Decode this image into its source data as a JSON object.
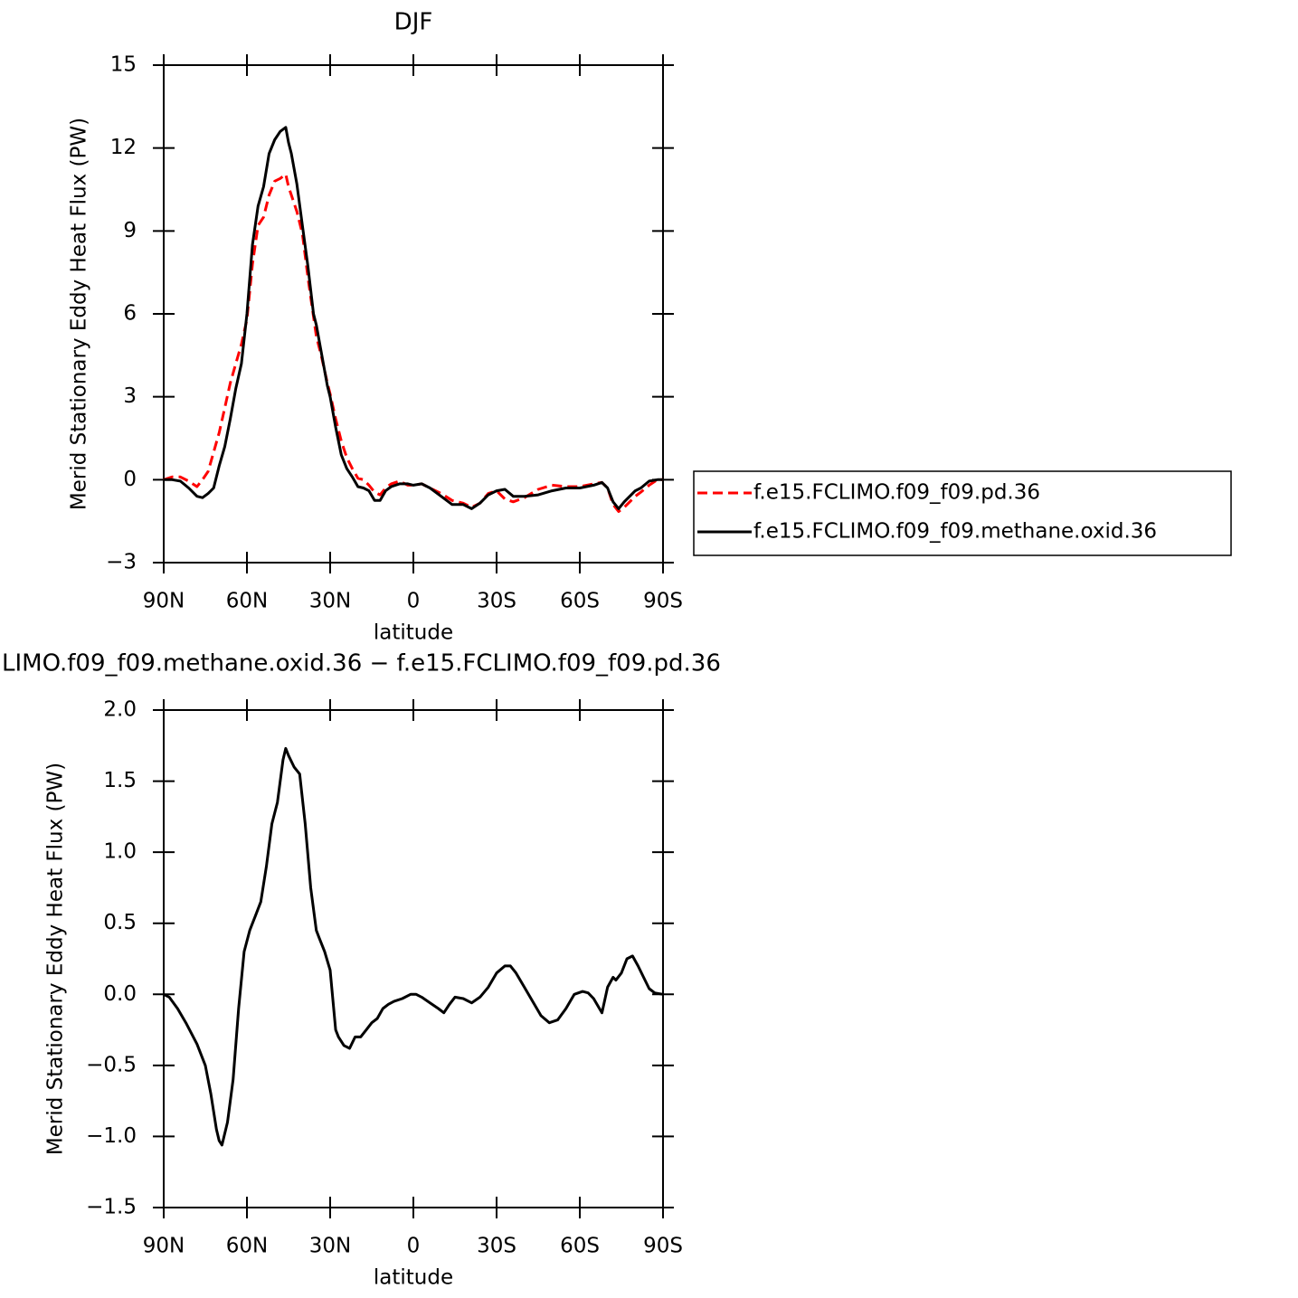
{
  "chart_data": [
    {
      "type": "line",
      "title": "DJF",
      "xlabel": "latitude",
      "ylabel": "Merid Stationary Eddy Heat Flux (PW)",
      "x": [
        90,
        87,
        84,
        81,
        78,
        76,
        74,
        72,
        70,
        68,
        66,
        64,
        62,
        60,
        58,
        56,
        54,
        52,
        50,
        48,
        46,
        45,
        44,
        42,
        40,
        38,
        36,
        35,
        33,
        31,
        30,
        28,
        26,
        24,
        22,
        20,
        18,
        16,
        14,
        12,
        10,
        8,
        5,
        2,
        0,
        -3,
        -6,
        -10,
        -14,
        -18,
        -21,
        -24,
        -27,
        -30,
        -33,
        -36,
        -40,
        -45,
        -50,
        -55,
        -60,
        -65,
        -68,
        -70,
        -72,
        -74,
        -76,
        -78,
        -80,
        -82,
        -85,
        -88,
        -90
      ],
      "series": [
        {
          "name": "f.e15.FCLIMO.f09_f09.pd.36",
          "color": "#ff0000",
          "linestyle": "dashed",
          "values": [
            0,
            0.1,
            0.1,
            -0.05,
            -0.25,
            0,
            0.3,
            1.0,
            1.7,
            2.6,
            3.5,
            4.2,
            4.9,
            5.8,
            7.8,
            9.2,
            9.5,
            10.3,
            10.8,
            10.9,
            11.05,
            10.6,
            10.3,
            9.7,
            8.9,
            7.3,
            5.9,
            5.2,
            4.4,
            3.5,
            3.1,
            2.2,
            1.4,
            0.8,
            0.4,
            0.05,
            0,
            -0.2,
            -0.45,
            -0.55,
            -0.3,
            -0.15,
            -0.05,
            -0.2,
            -0.2,
            -0.15,
            -0.3,
            -0.5,
            -0.75,
            -0.85,
            -1.0,
            -0.85,
            -0.5,
            -0.4,
            -0.7,
            -0.8,
            -0.65,
            -0.35,
            -0.2,
            -0.25,
            -0.25,
            -0.15,
            -0.1,
            -0.3,
            -0.9,
            -1.15,
            -1.0,
            -0.8,
            -0.6,
            -0.45,
            -0.2,
            0,
            0
          ]
        },
        {
          "name": "f.e15.FCLIMO.f09_f09.methane.oxid.36",
          "color": "#000000",
          "linestyle": "solid",
          "values": [
            0,
            0,
            -0.05,
            -0.3,
            -0.6,
            -0.65,
            -0.5,
            -0.3,
            0.5,
            1.2,
            2.2,
            3.3,
            4.2,
            6.0,
            8.5,
            9.9,
            10.6,
            11.8,
            12.3,
            12.6,
            12.75,
            12.2,
            11.8,
            10.7,
            9.2,
            7.7,
            6.0,
            5.6,
            4.5,
            3.4,
            3.0,
            1.9,
            0.9,
            0.4,
            0.1,
            -0.25,
            -0.3,
            -0.4,
            -0.75,
            -0.75,
            -0.4,
            -0.25,
            -0.15,
            -0.15,
            -0.2,
            -0.15,
            -0.3,
            -0.6,
            -0.9,
            -0.9,
            -1.05,
            -0.85,
            -0.55,
            -0.4,
            -0.35,
            -0.6,
            -0.6,
            -0.55,
            -0.4,
            -0.3,
            -0.3,
            -0.2,
            -0.1,
            -0.3,
            -0.8,
            -1.05,
            -0.8,
            -0.6,
            -0.4,
            -0.3,
            -0.05,
            0,
            0
          ]
        }
      ],
      "xlim": [
        90,
        -90
      ],
      "xticks": [
        {
          "value": 90,
          "label": "90N"
        },
        {
          "value": 60,
          "label": "60N"
        },
        {
          "value": 30,
          "label": "30N"
        },
        0,
        {
          "value": -30,
          "label": "30S"
        },
        {
          "value": -60,
          "label": "60S"
        },
        {
          "value": -90,
          "label": "90S"
        }
      ],
      "ylim": [
        -3,
        15
      ],
      "yticks": [
        {
          "value": -3,
          "label": "−3"
        },
        0,
        3,
        6,
        9,
        12,
        15
      ],
      "legend": "right"
    },
    {
      "type": "line",
      "title": "LIMO.f09_f09.methane.oxid.36 − f.e15.FCLIMO.f09_f09.pd.36",
      "xlabel": "latitude",
      "ylabel": "Merid Stationary Eddy Heat Flux (PW)",
      "x": [
        90,
        88,
        85,
        82,
        78,
        75,
        73,
        71,
        70,
        69,
        67,
        65,
        63,
        61,
        59,
        57,
        55,
        53,
        51,
        49,
        47,
        46,
        45,
        43,
        41,
        39,
        37,
        35,
        34,
        32,
        30,
        28,
        27,
        25,
        23,
        21,
        19,
        17,
        15,
        13,
        11,
        9,
        7,
        4,
        1,
        -1,
        -3,
        -6,
        -9,
        -11,
        -13,
        -15,
        -18,
        -21,
        -24,
        -27,
        -30,
        -33,
        -35,
        -37,
        -40,
        -43,
        -46,
        -49,
        -52,
        -55,
        -58,
        -61,
        -63,
        -65,
        -68,
        -70,
        -72,
        -73,
        -75,
        -77,
        -79,
        -81,
        -83,
        -85,
        -87,
        -90
      ],
      "values": [
        0,
        -0.02,
        -0.1,
        -0.2,
        -0.35,
        -0.5,
        -0.7,
        -0.95,
        -1.03,
        -1.06,
        -0.9,
        -0.6,
        -0.1,
        0.3,
        0.45,
        0.55,
        0.65,
        0.9,
        1.2,
        1.35,
        1.65,
        1.73,
        1.68,
        1.6,
        1.55,
        1.2,
        0.75,
        0.45,
        0.4,
        0.3,
        0.17,
        -0.25,
        -0.3,
        -0.36,
        -0.38,
        -0.3,
        -0.3,
        -0.25,
        -0.2,
        -0.17,
        -0.1,
        -0.07,
        -0.05,
        -0.03,
        0,
        0,
        -0.02,
        -0.06,
        -0.1,
        -0.13,
        -0.07,
        -0.02,
        -0.03,
        -0.06,
        -0.02,
        0.05,
        0.15,
        0.2,
        0.2,
        0.15,
        0.05,
        -0.05,
        -0.15,
        -0.2,
        -0.18,
        -0.1,
        0,
        0.02,
        0.01,
        -0.03,
        -0.13,
        0.05,
        0.12,
        0.1,
        0.15,
        0.25,
        0.27,
        0.2,
        0.12,
        0.04,
        0.01,
        0
      ],
      "color": "#000000",
      "xlim": [
        90,
        -90
      ],
      "xticks": [
        {
          "value": 90,
          "label": "90N"
        },
        {
          "value": 60,
          "label": "60N"
        },
        {
          "value": 30,
          "label": "30N"
        },
        0,
        {
          "value": -30,
          "label": "30S"
        },
        {
          "value": -60,
          "label": "60S"
        },
        {
          "value": -90,
          "label": "90S"
        }
      ],
      "ylim": [
        -1.5,
        2
      ],
      "yticks": [
        {
          "value": -1.5,
          "label": "−1.5"
        },
        {
          "value": -1,
          "label": "−1.0"
        },
        {
          "value": -0.5,
          "label": "−0.5"
        },
        {
          "value": 0,
          "label": "0.0"
        },
        {
          "value": 0.5,
          "label": "0.5"
        },
        {
          "value": 1,
          "label": "1.0"
        },
        {
          "value": 1.5,
          "label": "1.5"
        },
        {
          "value": 2,
          "label": "2.0"
        }
      ]
    }
  ]
}
